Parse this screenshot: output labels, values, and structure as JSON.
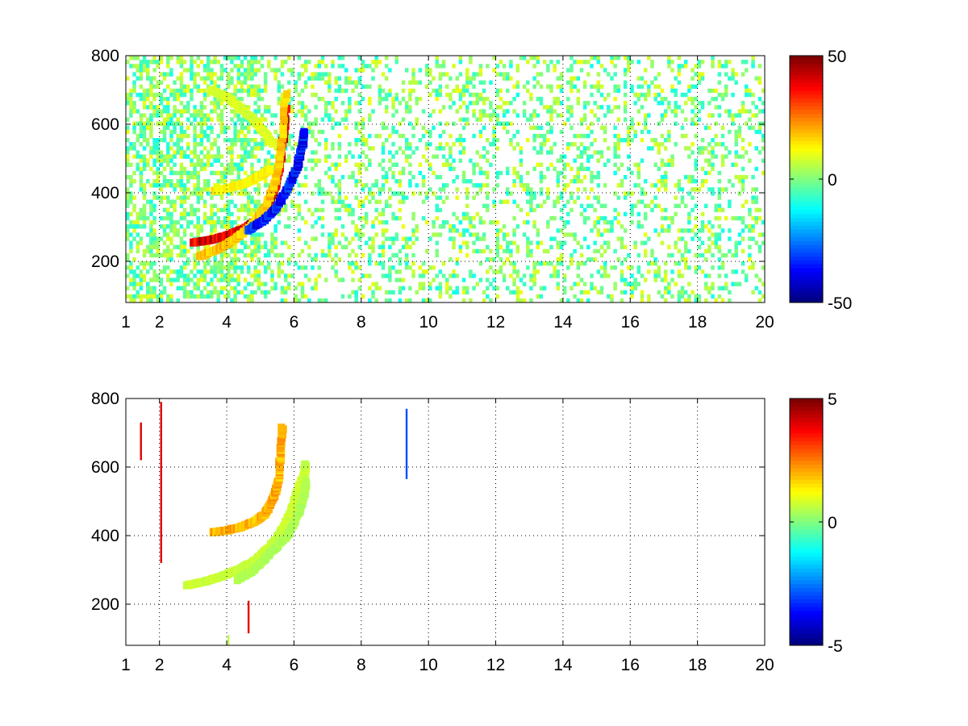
{
  "chart_data": [
    {
      "type": "heatmap",
      "panel": "top",
      "title": "",
      "xlabel": "",
      "ylabel": "",
      "xlim": [
        1,
        20
      ],
      "ylim": [
        80,
        800
      ],
      "x_ticks": [
        "1",
        "2",
        "4",
        "6",
        "8",
        "10",
        "12",
        "14",
        "16",
        "18",
        "20"
      ],
      "x_tick_values": [
        1,
        2,
        4,
        6,
        8,
        10,
        12,
        14,
        16,
        18,
        20
      ],
      "y_ticks": [
        "200",
        "400",
        "600",
        "800"
      ],
      "y_tick_values": [
        200,
        400,
        600,
        800
      ],
      "grid": true,
      "colormap": "jet",
      "clim": [
        -50,
        50
      ],
      "colorbar_ticks": [
        "50",
        "0",
        "-50"
      ],
      "colorbar_tick_values": [
        50,
        0,
        -50
      ],
      "features": [
        {
          "shape": "arc",
          "value": 45,
          "points": [
            [
              3.0,
              255
            ],
            [
              3.5,
              262
            ],
            [
              4.0,
              275
            ],
            [
              4.5,
              295
            ],
            [
              4.9,
              320
            ],
            [
              5.2,
              360
            ],
            [
              5.45,
              420
            ],
            [
              5.6,
              500
            ],
            [
              5.7,
              580
            ],
            [
              5.75,
              650
            ]
          ]
        },
        {
          "shape": "arc",
          "value": 20,
          "points": [
            [
              3.2,
              215
            ],
            [
              3.7,
              235
            ],
            [
              4.2,
              262
            ],
            [
              4.7,
              300
            ],
            [
              5.1,
              350
            ],
            [
              5.4,
              420
            ],
            [
              5.6,
              520
            ],
            [
              5.75,
              700
            ]
          ]
        },
        {
          "shape": "arc",
          "value": -40,
          "points": [
            [
              4.6,
              290
            ],
            [
              5.1,
              320
            ],
            [
              5.5,
              360
            ],
            [
              5.85,
              420
            ],
            [
              6.1,
              480
            ],
            [
              6.25,
              540
            ],
            [
              6.3,
              580
            ]
          ]
        },
        {
          "shape": "arc",
          "value": 15,
          "points": [
            [
              3.6,
              405
            ],
            [
              4.1,
              415
            ],
            [
              4.6,
              430
            ],
            [
              5.0,
              450
            ],
            [
              5.3,
              470
            ]
          ]
        },
        {
          "shape": "arc",
          "value": 10,
          "points": [
            [
              3.5,
              700
            ],
            [
              4.0,
              680
            ],
            [
              4.5,
              640
            ],
            [
              5.0,
              590
            ],
            [
              5.4,
              540
            ]
          ]
        }
      ]
    },
    {
      "type": "heatmap",
      "panel": "bottom",
      "title": "",
      "xlabel": "",
      "ylabel": "",
      "xlim": [
        1,
        20
      ],
      "ylim": [
        80,
        800
      ],
      "x_ticks": [
        "1",
        "2",
        "4",
        "6",
        "8",
        "10",
        "12",
        "14",
        "16",
        "18",
        "20"
      ],
      "x_tick_values": [
        1,
        2,
        4,
        6,
        8,
        10,
        12,
        14,
        16,
        18,
        20
      ],
      "y_ticks": [
        "200",
        "400",
        "600",
        "800"
      ],
      "y_tick_values": [
        200,
        400,
        600,
        800
      ],
      "grid": true,
      "colormap": "jet",
      "clim": [
        -5,
        5
      ],
      "colorbar_ticks": [
        "5",
        "0",
        "-5"
      ],
      "colorbar_tick_values": [
        5,
        0,
        -5
      ],
      "features": [
        {
          "shape": "arc",
          "value": 0.8,
          "points": [
            [
              2.8,
              255
            ],
            [
              3.3,
              265
            ],
            [
              3.8,
              280
            ],
            [
              4.3,
              300
            ],
            [
              4.8,
              325
            ],
            [
              5.2,
              360
            ],
            [
              5.6,
              410
            ],
            [
              5.9,
              470
            ],
            [
              6.1,
              530
            ],
            [
              6.3,
              580
            ],
            [
              6.35,
              610
            ]
          ]
        },
        {
          "shape": "arc",
          "value": 2.2,
          "points": [
            [
              3.6,
              410
            ],
            [
              4.0,
              415
            ],
            [
              4.4,
              425
            ],
            [
              4.8,
              440
            ],
            [
              5.1,
              460
            ],
            [
              5.3,
              490
            ],
            [
              5.45,
              530
            ],
            [
              5.55,
              580
            ],
            [
              5.6,
              650
            ],
            [
              5.65,
              720
            ]
          ]
        },
        {
          "shape": "arc",
          "value": 0.5,
          "points": [
            [
              4.3,
              270
            ],
            [
              4.8,
              300
            ],
            [
              5.3,
              350
            ],
            [
              5.8,
              400
            ],
            [
              6.1,
              460
            ],
            [
              6.3,
              520
            ],
            [
              6.35,
              560
            ]
          ]
        },
        {
          "shape": "vline",
          "value": 4,
          "x": 2.05,
          "y_from": 320,
          "y_to": 790
        },
        {
          "shape": "vline",
          "value": 4,
          "x": 1.45,
          "y_from": 620,
          "y_to": 730
        },
        {
          "shape": "vline",
          "value": 4,
          "x": 4.65,
          "y_from": 115,
          "y_to": 210
        },
        {
          "shape": "vline",
          "value": -3,
          "x": 9.35,
          "y_from": 565,
          "y_to": 770
        },
        {
          "shape": "vline",
          "value": 0.6,
          "x": 4.05,
          "y_from": 80,
          "y_to": 110
        }
      ]
    }
  ]
}
